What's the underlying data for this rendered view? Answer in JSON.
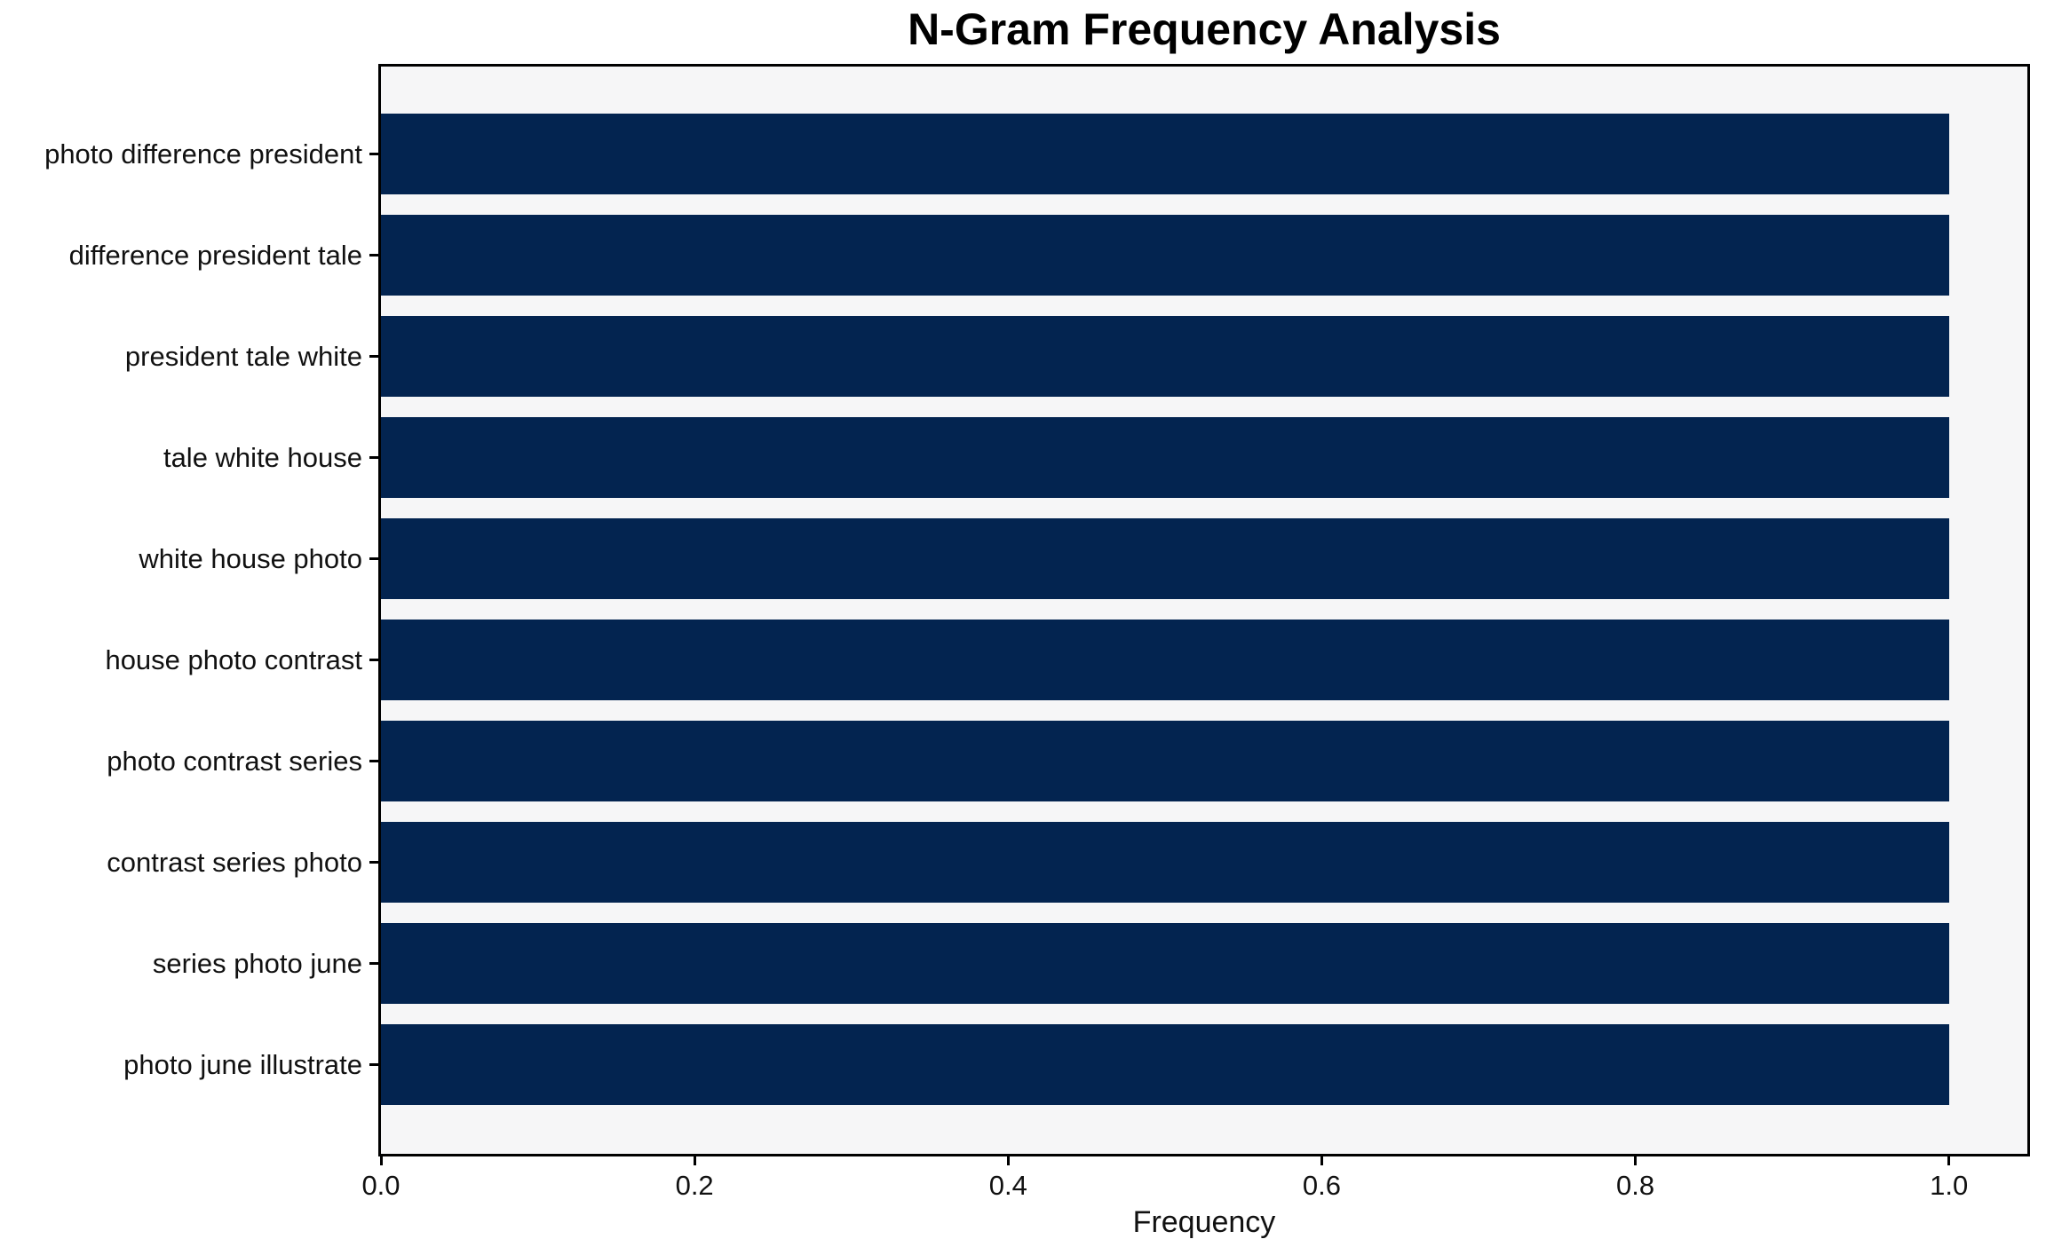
{
  "chart_data": {
    "type": "bar",
    "orientation": "horizontal",
    "title": "N-Gram Frequency Analysis",
    "xlabel": "Frequency",
    "ylabel": "",
    "categories": [
      "photo difference president",
      "difference president tale",
      "president tale white",
      "tale white house",
      "white house photo",
      "house photo contrast",
      "photo contrast series",
      "contrast series photo",
      "series photo june",
      "photo june illustrate"
    ],
    "values": [
      1.0,
      1.0,
      1.0,
      1.0,
      1.0,
      1.0,
      1.0,
      1.0,
      1.0,
      1.0
    ],
    "x_ticks": [
      0.0,
      0.2,
      0.4,
      0.6,
      0.8,
      1.0
    ],
    "x_tick_labels": [
      "0.0",
      "0.2",
      "0.4",
      "0.6",
      "0.8",
      "1.0"
    ],
    "xlim": [
      0,
      1.05
    ],
    "grid": false,
    "legend": null,
    "bar_color": "#032450",
    "plot_bg": "#f6f6f7",
    "spine_color": "#000000"
  }
}
